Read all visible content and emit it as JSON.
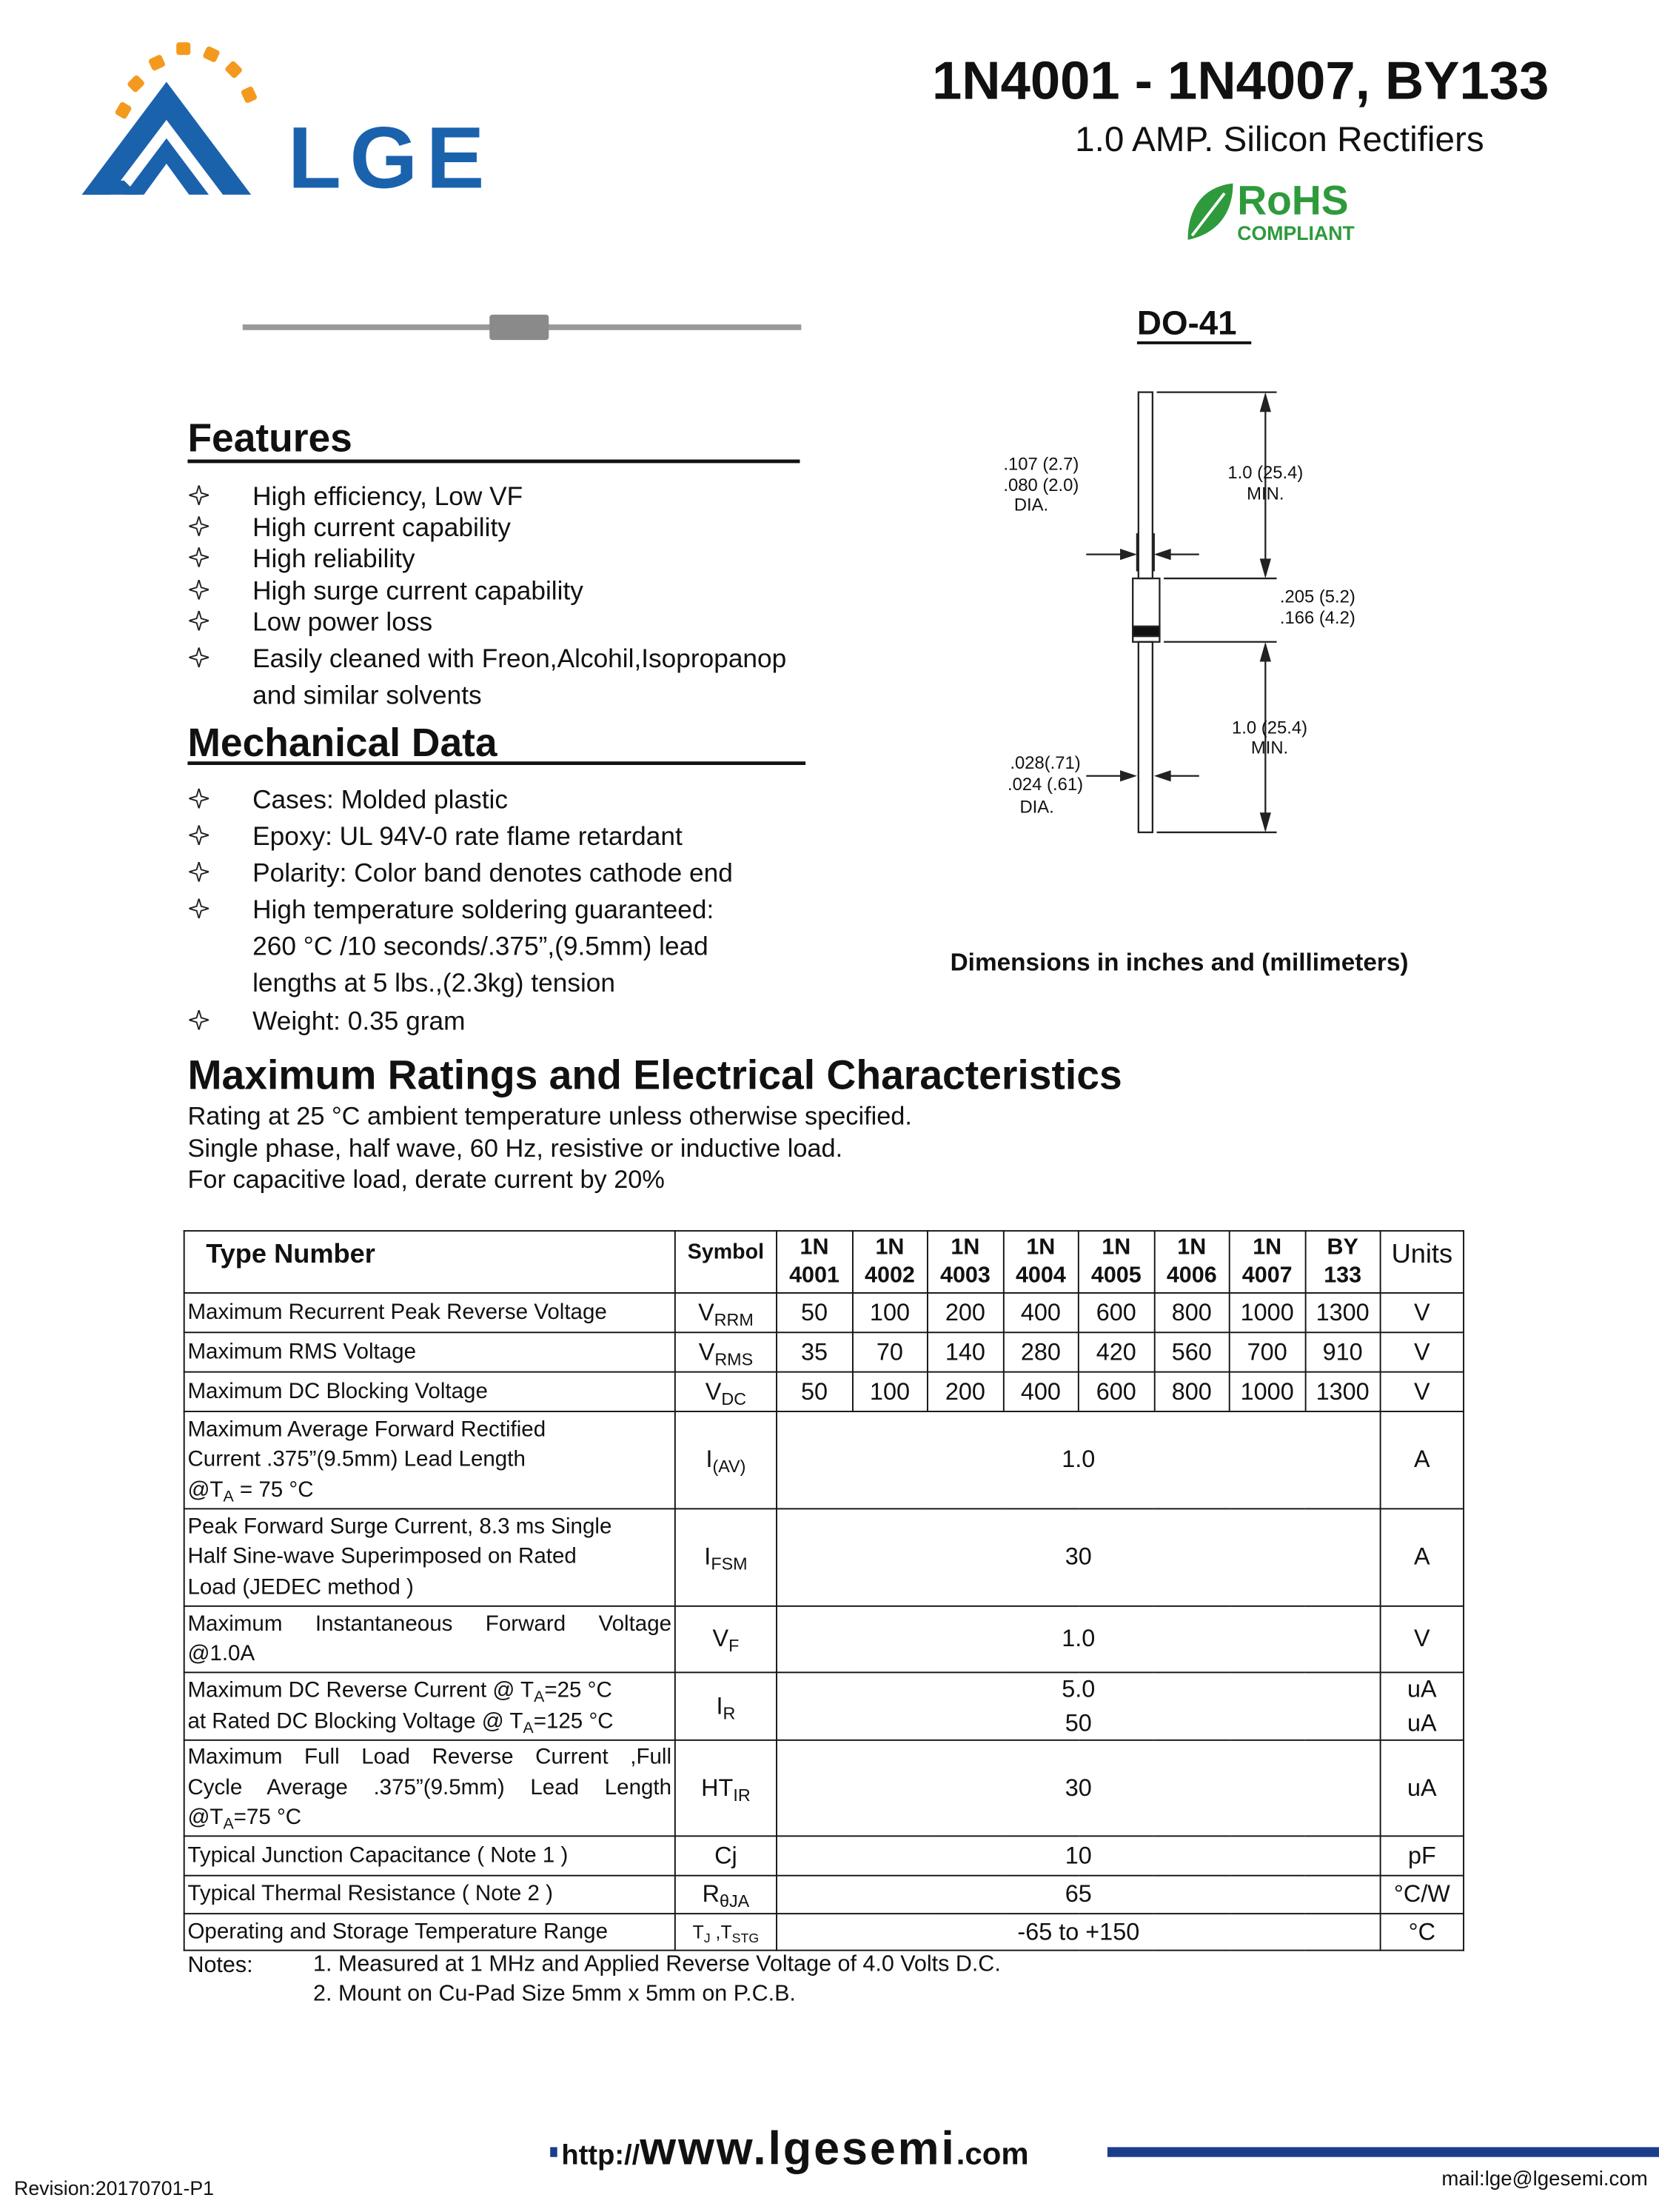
{
  "header": {
    "logo_text": "LGE",
    "title": "1N4001 - 1N4007, BY133",
    "subtitle": "1.0 AMP. Silicon Rectifiers",
    "rohs": "RoHS",
    "rohs_sub": "COMPLIANT"
  },
  "package": {
    "name": "DO-41",
    "labels": {
      "top_dia_max": ".107 (2.7)",
      "top_dia_min": ".080 (2.0)",
      "top_dia": "DIA.",
      "top_len": "1.0 (25.4)",
      "top_len_min": "MIN.",
      "body_max": ".205 (5.2)",
      "body_min": ".166 (4.2)",
      "bottom_len": "1.0 (25.4)",
      "bottom_len_min": "MIN.",
      "lead_max": ".028(.71)",
      "lead_min": ".024 (.61)",
      "lead_dia": "DIA."
    },
    "note": "Dimensions in inches and (millimeters)"
  },
  "features": {
    "title": "Features",
    "items": [
      [
        "High efficiency, Low VF"
      ],
      [
        "High current capability"
      ],
      [
        "High reliability"
      ],
      [
        "High surge current capability"
      ],
      [
        "Low power loss"
      ],
      [
        "Easily cleaned with Freon,Alcohil,Isopropanop",
        "and similar solvents"
      ]
    ]
  },
  "mechanical": {
    "title": "Mechanical Data",
    "items": [
      [
        "Cases: Molded plastic"
      ],
      [
        "Epoxy: UL 94V-0 rate flame retardant"
      ],
      [
        "Polarity: Color band denotes cathode end"
      ],
      [
        "High temperature soldering guaranteed:",
        "260 °C /10 seconds/.375”,(9.5mm) lead",
        "lengths at 5 lbs.,(2.3kg) tension"
      ],
      [
        "Weight: 0.35 gram"
      ]
    ]
  },
  "ratings": {
    "title": "Maximum Ratings and Electrical Characteristics",
    "lines": [
      "Rating at 25 °C ambient temperature unless otherwise specified.",
      "Single phase, half wave, 60 Hz, resistive or inductive load.",
      "For capacitive load, derate current by 20%"
    ]
  },
  "table": {
    "header": {
      "type": "Type Number",
      "symbol": "Symbol",
      "columns": [
        [
          "1N",
          "4001"
        ],
        [
          "1N",
          "4002"
        ],
        [
          "1N",
          "4003"
        ],
        [
          "1N",
          "4004"
        ],
        [
          "1N",
          "4005"
        ],
        [
          "1N",
          "4006"
        ],
        [
          "1N",
          "4007"
        ],
        [
          "BY",
          "133"
        ]
      ],
      "units": "Units"
    },
    "rows": [
      {
        "label": [
          [
            "Maximum Recurrent Peak Reverse Voltage"
          ]
        ],
        "symbol": [
          "V",
          {
            "sub": "RRM"
          }
        ],
        "values": [
          "50",
          "100",
          "200",
          "400",
          "600",
          "800",
          "1000",
          "1300"
        ],
        "units": [
          "V"
        ]
      },
      {
        "label": [
          [
            "Maximum RMS Voltage"
          ]
        ],
        "symbol": [
          "V",
          {
            "sub": "RMS"
          }
        ],
        "values": [
          "35",
          "70",
          "140",
          "280",
          "420",
          "560",
          "700",
          "910"
        ],
        "units": [
          "V"
        ]
      },
      {
        "label": [
          [
            "Maximum DC Blocking Voltage"
          ]
        ],
        "symbol": [
          "V",
          {
            "sub": "DC"
          }
        ],
        "values": [
          "50",
          "100",
          "200",
          "400",
          "600",
          "800",
          "1000",
          "1300"
        ],
        "units": [
          "V"
        ]
      },
      {
        "label": [
          [
            "Maximum Average Forward Rectified"
          ],
          [
            "Current .375”(9.5mm) Lead Length"
          ],
          [
            "@T",
            {
              "sub": "A"
            },
            " = 75 °C"
          ]
        ],
        "symbol": [
          "I",
          {
            "sub": "(AV)"
          }
        ],
        "values": [
          "1.0"
        ],
        "units": [
          "A"
        ]
      },
      {
        "label": [
          [
            "Peak Forward Surge Current, 8.3 ms Single"
          ],
          [
            "Half Sine-wave Superimposed on Rated"
          ],
          [
            "Load (JEDEC method )"
          ]
        ],
        "symbol": [
          "I",
          {
            "sub": "FSM"
          }
        ],
        "values": [
          "30"
        ],
        "units": [
          "A"
        ]
      },
      {
        "label": [
          [
            "Maximum Instantaneous Forward Voltage"
          ],
          [
            "@1.0A"
          ]
        ],
        "symbol": [
          "V",
          {
            "sub": "F"
          }
        ],
        "values": [
          "1.0"
        ],
        "units": [
          "V"
        ]
      },
      {
        "label": [
          [
            "Maximum DC Reverse Current @ T",
            {
              "sub": "A"
            },
            "=25 °C"
          ],
          [
            "at Rated DC Blocking Voltage @ T",
            {
              "sub": "A"
            },
            "=125 °C"
          ]
        ],
        "symbol": [
          "I",
          {
            "sub": "R"
          }
        ],
        "values": [
          "5.0",
          "50"
        ],
        "units": [
          "uA",
          "uA"
        ]
      },
      {
        "label": [
          [
            "Maximum Full Load Reverse Current ,Full"
          ],
          [
            "Cycle Average .375”(9.5mm) Lead Length"
          ],
          [
            "@T",
            {
              "sub": "A"
            },
            "=75 °C"
          ]
        ],
        "symbol": [
          "HT",
          {
            "sub": "IR"
          }
        ],
        "values": [
          "30"
        ],
        "units": [
          "uA"
        ]
      },
      {
        "label": [
          [
            "Typical Junction Capacitance ( Note 1 )"
          ]
        ],
        "symbol": [
          "Cj"
        ],
        "values": [
          "10"
        ],
        "units": [
          "pF"
        ]
      },
      {
        "label": [
          [
            "Typical Thermal Resistance ( Note 2 )"
          ]
        ],
        "symbol": [
          "R",
          {
            "sub": "θJA"
          }
        ],
        "values": [
          "65"
        ],
        "units": [
          "°C/W"
        ]
      },
      {
        "label": [
          [
            "Operating and Storage Temperature Range"
          ]
        ],
        "symbol": [
          "T",
          {
            "sub": "J"
          },
          " ,T",
          {
            "sub": "STG"
          }
        ],
        "values": [
          "-65 to +150"
        ],
        "units": [
          "°C"
        ]
      }
    ]
  },
  "notes": {
    "label": "Notes:",
    "items": [
      "1. Measured at 1 MHz and Applied Reverse Voltage of 4.0 Volts D.C.",
      "2. Mount on Cu-Pad Size 5mm x 5mm on P.C.B."
    ]
  },
  "footer": {
    "url_prefix": "http://",
    "url_main": "www.lgesemi",
    "url_suffix": ".com",
    "revision": "Revision:20170701-P1",
    "mail": "mail:lge@lgesemi.com"
  }
}
